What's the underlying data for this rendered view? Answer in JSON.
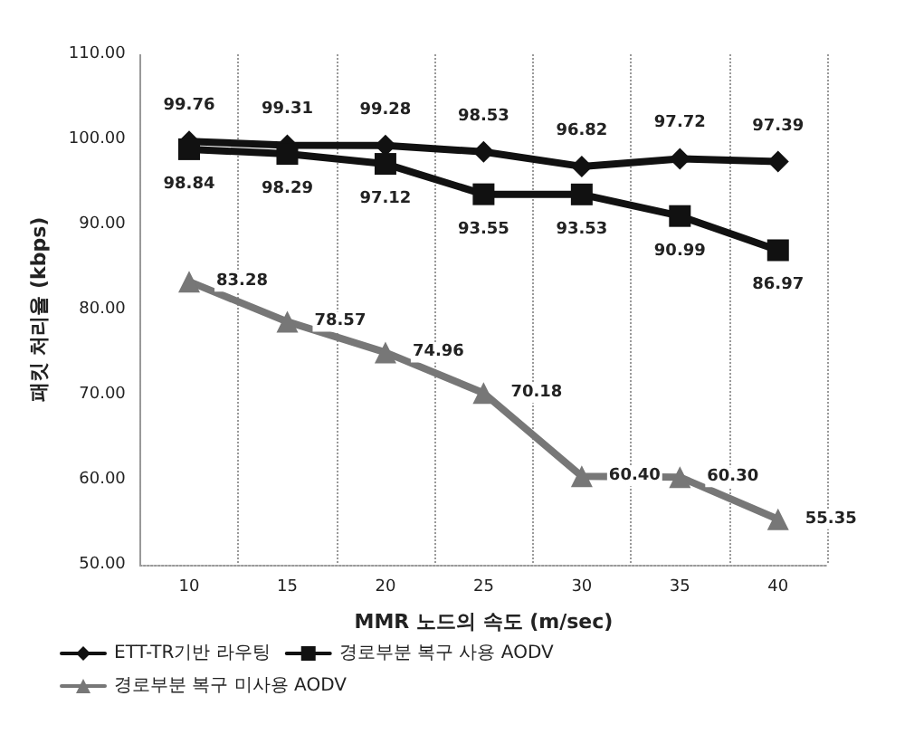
{
  "chart_data": {
    "type": "line",
    "xlabel": "MMR 노드의 속도 (m/sec)",
    "ylabel": "패킷 처리율 (kbps)",
    "categories": [
      "10",
      "15",
      "20",
      "25",
      "30",
      "35",
      "40"
    ],
    "series": [
      {
        "name": "ETT-TR기반 라우팅",
        "color": "#111111",
        "marker": "diamond",
        "values": [
          99.76,
          99.31,
          99.28,
          98.53,
          96.82,
          97.72,
          97.39
        ],
        "value_labels": [
          "99.76",
          "99.31",
          "99.28",
          "98.53",
          "96.82",
          "97.72",
          "97.39"
        ]
      },
      {
        "name": "경로부분 복구 사용 AODV",
        "color": "#111111",
        "marker": "square",
        "values": [
          98.84,
          98.29,
          97.12,
          93.55,
          93.53,
          90.99,
          86.97
        ],
        "value_labels": [
          "98.84",
          "98.29",
          "97.12",
          "93.55",
          "93.53",
          "90.99",
          "86.97"
        ]
      },
      {
        "name": "경로부분 복구 미사용 AODV",
        "color": "#777777",
        "marker": "triangle",
        "values": [
          83.28,
          78.57,
          74.96,
          70.18,
          60.4,
          60.3,
          55.35
        ],
        "value_labels": [
          "83.28",
          "78.57",
          "74.96",
          "70.18",
          "60.40",
          "60.30",
          "55.35"
        ]
      }
    ],
    "ylim": [
      50,
      110
    ],
    "yticks": [
      {
        "value": 50,
        "label": "50.00"
      },
      {
        "value": 60,
        "label": "60.00"
      },
      {
        "value": 70,
        "label": "70.00"
      },
      {
        "value": 80,
        "label": "80.00"
      },
      {
        "value": 90,
        "label": "90.00"
      },
      {
        "value": 100,
        "label": "100.00"
      },
      {
        "value": 110,
        "label": "110.00"
      }
    ],
    "grid": "x",
    "legend": "bottom",
    "line_style": "solid"
  }
}
